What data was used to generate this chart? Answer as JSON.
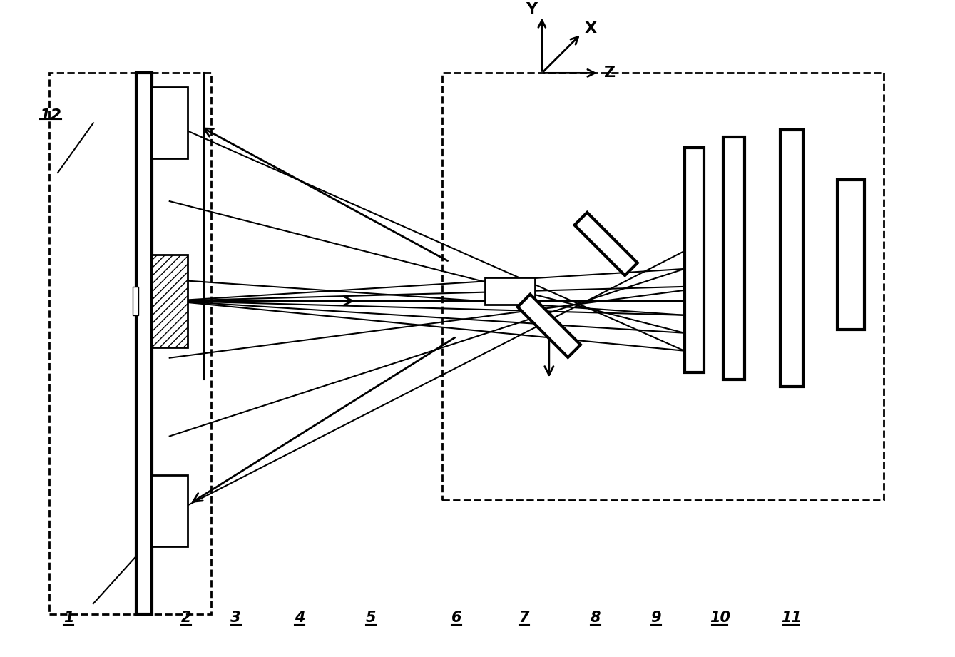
{
  "bg_color": "#ffffff",
  "line_color": "#000000",
  "fig_width": 13.39,
  "fig_height": 9.21,
  "labels": [
    "1",
    "2",
    "3",
    "4",
    "5",
    "6",
    "7",
    "8",
    "9",
    "10",
    "11",
    "12"
  ],
  "axis_labels": [
    "Y",
    "X",
    "Z"
  ]
}
